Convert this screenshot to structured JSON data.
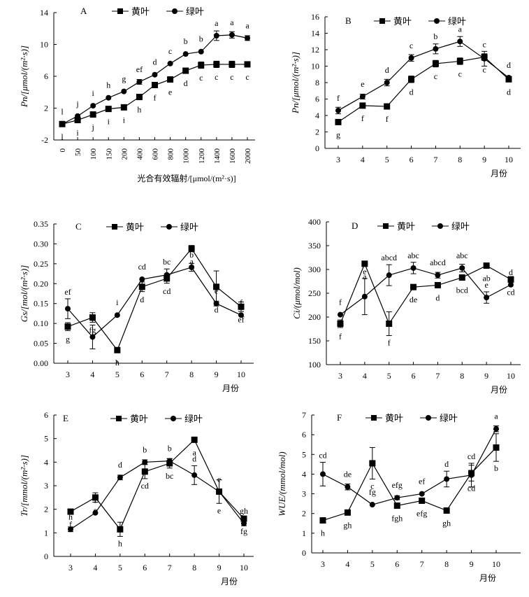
{
  "legend": {
    "yellow": "黄叶",
    "green": "绿叶"
  },
  "chart_data": [
    {
      "panel": "A",
      "type": "line",
      "ylabel": "Pn/[μmol/(m²·s)]",
      "xlabel": "光合有效辐射/[μmol/(m²·s)]",
      "categories": [
        "0",
        "50",
        "100",
        "150",
        "200",
        "400",
        "600",
        "800",
        "1000",
        "1200",
        "1400",
        "1600",
        "2000"
      ],
      "ylim": [
        -2,
        14
      ],
      "yticks": [
        -2,
        2,
        6,
        10,
        14
      ],
      "series": [
        {
          "name": "黄叶",
          "values": [
            0,
            0.5,
            1.2,
            1.9,
            2.1,
            3.4,
            4.9,
            5.6,
            6.7,
            7.4,
            7.5,
            7.5,
            7.5
          ],
          "errors": [
            0,
            0,
            0,
            0,
            0,
            0,
            0,
            0,
            0,
            0.4,
            0.4,
            0.4,
            0
          ],
          "letters": [
            "l",
            "i",
            "j",
            "i",
            "i",
            "h",
            "f",
            "e",
            "d",
            "c",
            "c",
            "c",
            "c"
          ]
        },
        {
          "name": "绿叶",
          "values": [
            0,
            1.0,
            2.3,
            3.3,
            4.1,
            5.3,
            6.2,
            7.6,
            8.8,
            9.1,
            11.1,
            11.2,
            10.8
          ],
          "errors": [
            0,
            0,
            0,
            0,
            0,
            0.3,
            0,
            0,
            0,
            0,
            0.6,
            0.4,
            0.3
          ],
          "letters": [
            "l",
            "j",
            "i",
            "h",
            "g",
            "ef",
            "d",
            "c",
            "b",
            "b",
            "a",
            "a",
            "a"
          ]
        }
      ]
    },
    {
      "panel": "B",
      "type": "line",
      "ylabel": "Pn/[μmol/(m²·s)]",
      "xlabel": "月份",
      "categories": [
        "3",
        "4",
        "5",
        "6",
        "7",
        "8",
        "9",
        "10"
      ],
      "ylim": [
        0,
        16
      ],
      "yticks": [
        0,
        2,
        4,
        6,
        8,
        10,
        12,
        14,
        16
      ],
      "series": [
        {
          "name": "黄叶",
          "values": [
            3.2,
            5.2,
            5.1,
            8.4,
            10.3,
            10.6,
            11.1,
            8.4
          ],
          "errors": [
            0,
            0,
            0,
            0.4,
            0.4,
            0.4,
            0.4,
            0
          ],
          "letters": [
            "g",
            "f",
            "f",
            "d",
            "c",
            "c",
            "c",
            "d"
          ]
        },
        {
          "name": "绿叶",
          "values": [
            4.6,
            6.3,
            8.0,
            11.0,
            12.1,
            13.0,
            10.9,
            8.6
          ],
          "errors": [
            0.4,
            0.3,
            0.4,
            0.4,
            0.6,
            0.6,
            0.9,
            0
          ],
          "letters": [
            "f",
            "e",
            "d",
            "c",
            "b",
            "a",
            "c",
            "d"
          ]
        }
      ]
    },
    {
      "panel": "C",
      "type": "line",
      "ylabel": "Gs/[mol/(m²·s)]",
      "xlabel": "月份",
      "categories": [
        "3",
        "4",
        "5",
        "6",
        "7",
        "8",
        "9",
        "10"
      ],
      "ylim": [
        0,
        0.35
      ],
      "yticks": [
        "0.00",
        "0.05",
        "0.10",
        "0.15",
        "0.20",
        "0.25",
        "0.30",
        "0.35"
      ],
      "series": [
        {
          "name": "黄叶",
          "values": [
            0.092,
            0.115,
            0.033,
            0.192,
            0.213,
            0.288,
            0.192,
            0.142
          ],
          "errors": [
            0.01,
            0.012,
            0,
            0.012,
            0.012,
            0.008,
            0.04,
            0.012
          ],
          "letters": [
            "g",
            "fg",
            "h",
            "d",
            "cd",
            "a",
            "d",
            "ef"
          ]
        },
        {
          "name": "绿叶",
          "values": [
            0.137,
            0.066,
            0.121,
            0.211,
            0.222,
            0.241,
            0.15,
            0.121
          ],
          "errors": [
            0.025,
            0.03,
            0,
            0,
            0.015,
            0.01,
            0.006,
            0
          ],
          "letters": [
            "ef",
            "h",
            "i",
            "cd",
            "bc",
            "b",
            "e",
            "f"
          ]
        }
      ]
    },
    {
      "panel": "D",
      "type": "line",
      "ylabel": "Ci/(μmol/mol)",
      "xlabel": "月份",
      "categories": [
        "3",
        "4",
        "5",
        "6",
        "7",
        "8",
        "9",
        "10"
      ],
      "ylim": [
        100,
        400
      ],
      "yticks": [
        100,
        150,
        200,
        250,
        300,
        350,
        400
      ],
      "series": [
        {
          "name": "黄叶",
          "values": [
            186,
            312,
            186,
            263,
            267,
            283,
            308,
            279
          ],
          "errors": [
            8,
            0,
            25,
            0,
            5,
            5,
            0,
            6
          ],
          "letters": [
            "f",
            "a",
            "f",
            "de",
            "d",
            "bcd",
            "ab",
            "cd"
          ]
        },
        {
          "name": "绿叶",
          "values": [
            205,
            243,
            288,
            303,
            288,
            303,
            241,
            268
          ],
          "errors": [
            0,
            38,
            22,
            12,
            6,
            8,
            12,
            0
          ],
          "letters": [
            "f",
            "e",
            "abcd",
            "abc",
            "abcd",
            "abc",
            "e",
            "d"
          ]
        }
      ]
    },
    {
      "panel": "E",
      "type": "line",
      "ylabel": "Tr/[mmol/(m²·s)]",
      "xlabel": "月份",
      "categories": [
        "3",
        "4",
        "5",
        "6",
        "7",
        "8",
        "9",
        "10"
      ],
      "ylim": [
        0,
        6
      ],
      "yticks": [
        0,
        1,
        2,
        3,
        4,
        5,
        6
      ],
      "series": [
        {
          "name": "黄叶",
          "values": [
            1.9,
            2.5,
            1.15,
            3.6,
            3.95,
            4.95,
            2.75,
            1.6
          ],
          "errors": [
            0,
            0.2,
            0.3,
            0.3,
            0.2,
            0,
            0.5,
            0.1
          ],
          "letters": [
            "f",
            "e",
            "h",
            "cd",
            "bc",
            "a",
            "e",
            "fg"
          ]
        },
        {
          "name": "绿叶",
          "values": [
            1.15,
            1.85,
            3.35,
            4.0,
            4.05,
            3.45,
            2.75,
            1.4
          ],
          "errors": [
            0.1,
            0,
            0.1,
            0.1,
            0.1,
            0.4,
            0,
            0.1
          ],
          "letters": [
            "h",
            "f",
            "d",
            "b",
            "b",
            "d",
            "e",
            "gh"
          ]
        }
      ]
    },
    {
      "panel": "F",
      "type": "line",
      "ylabel": "WUE/(mmol/mol)",
      "xlabel": "月份",
      "categories": [
        "3",
        "4",
        "5",
        "6",
        "7",
        "8",
        "9",
        "10"
      ],
      "ylim": [
        0,
        7
      ],
      "yticks": [
        0,
        1,
        2,
        3,
        4,
        5,
        6,
        7
      ],
      "series": [
        {
          "name": "黄叶",
          "values": [
            1.65,
            2.05,
            4.55,
            2.4,
            2.65,
            2.15,
            4.05,
            5.35
          ],
          "errors": [
            0,
            0,
            0.8,
            0,
            0,
            0,
            0.4,
            0.7
          ],
          "letters": [
            "h",
            "gh",
            "c",
            "fgh",
            "efg",
            "gh",
            "cd",
            "b"
          ]
        },
        {
          "name": "绿叶",
          "values": [
            4.0,
            3.35,
            2.45,
            2.8,
            3.0,
            3.75,
            3.95,
            6.3
          ],
          "errors": [
            0.6,
            0.15,
            0,
            0.1,
            0,
            0.4,
            0.6,
            0.15
          ],
          "letters": [
            "cd",
            "de",
            "fg",
            "efg",
            "ef",
            "d",
            "cd",
            "a"
          ]
        }
      ]
    }
  ]
}
